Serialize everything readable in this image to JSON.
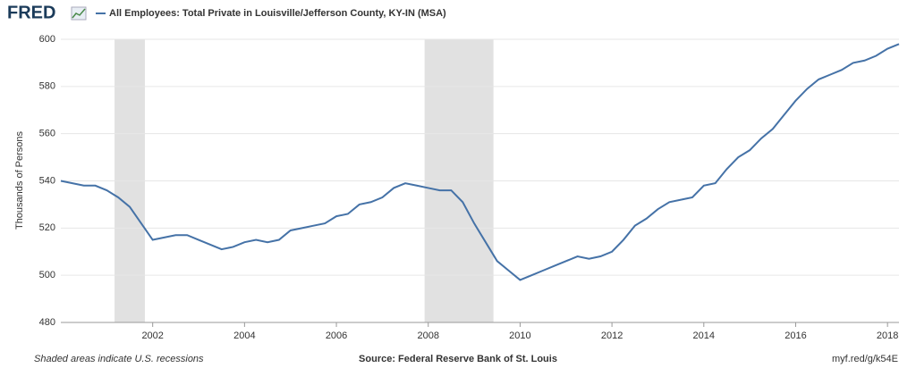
{
  "brand": "FRED",
  "chart_data": {
    "type": "line",
    "series": [
      {
        "name": "All Employees: Total Private in Louisville/Jefferson County, KY-IN (MSA)",
        "color": "#4572a7",
        "x": [
          2000,
          2000.25,
          2000.5,
          2000.75,
          2001,
          2001.25,
          2001.5,
          2001.75,
          2002,
          2002.25,
          2002.5,
          2002.75,
          2003,
          2003.25,
          2003.5,
          2003.75,
          2004,
          2004.25,
          2004.5,
          2004.75,
          2005,
          2005.25,
          2005.5,
          2005.75,
          2006,
          2006.25,
          2006.5,
          2006.75,
          2007,
          2007.25,
          2007.5,
          2007.75,
          2008,
          2008.25,
          2008.5,
          2008.75,
          2009,
          2009.25,
          2009.5,
          2009.75,
          2010,
          2010.25,
          2010.5,
          2010.75,
          2011,
          2011.25,
          2011.5,
          2011.75,
          2012,
          2012.25,
          2012.5,
          2012.75,
          2013,
          2013.25,
          2013.5,
          2013.75,
          2014,
          2014.25,
          2014.5,
          2014.75,
          2015,
          2015.25,
          2015.5,
          2015.75,
          2016,
          2016.25,
          2016.5,
          2016.75,
          2017,
          2017.25,
          2017.5,
          2017.75,
          2018,
          2018.25
        ],
        "values": [
          540,
          539,
          538,
          538,
          536,
          533,
          529,
          522,
          515,
          516,
          517,
          517,
          515,
          513,
          511,
          512,
          514,
          515,
          514,
          515,
          519,
          520,
          521,
          522,
          525,
          526,
          530,
          531,
          533,
          537,
          539,
          538,
          537,
          536,
          536,
          531,
          522,
          514,
          506,
          502,
          498,
          500,
          502,
          504,
          506,
          508,
          507,
          508,
          510,
          515,
          521,
          524,
          528,
          531,
          532,
          533,
          538,
          539,
          545,
          550,
          553,
          558,
          562,
          568,
          574,
          579,
          583,
          585,
          587,
          590,
          591,
          593,
          596,
          598
        ]
      }
    ],
    "recessions": [
      [
        2001.17,
        2001.83
      ],
      [
        2007.92,
        2009.42
      ]
    ],
    "ylabel": "Thousands of Persons",
    "xlim": [
      2000,
      2018.25
    ],
    "ylim": [
      480,
      600
    ],
    "xticks": [
      2002,
      2004,
      2006,
      2008,
      2010,
      2012,
      2014,
      2016,
      2018
    ],
    "yticks": [
      480,
      500,
      520,
      540,
      560,
      580,
      600
    ],
    "grid": true,
    "notes": [
      "Shaded areas indicate U.S. recessions",
      "Source: Federal Reserve Bank of St. Louis",
      "myf.red/g/k54E"
    ]
  }
}
